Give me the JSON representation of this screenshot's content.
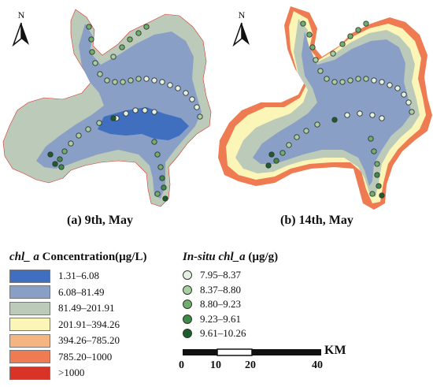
{
  "north_label": "N",
  "panels": [
    {
      "caption": "(a) 9th, May",
      "caption_date": "9th, May"
    },
    {
      "caption": "(b) 14th, May",
      "caption_date": "14th, May"
    }
  ],
  "concentration_legend": {
    "title_italic": "chl_ a",
    "title_rest": "Concentration(µg/L)",
    "classes": [
      {
        "label": "1.31–6.08",
        "color": "#3f6fbe"
      },
      {
        "label": "6.08–81.49",
        "color": "#8a9fc6"
      },
      {
        "label": "81.49–201.91",
        "color": "#bccab9"
      },
      {
        "label": "201.91–394.26",
        "color": "#fbf6b8"
      },
      {
        "label": "394.26–785.20",
        "color": "#f5b583"
      },
      {
        "label": "785.20–1000",
        "color": "#ee7b52"
      },
      {
        "label": ">1000",
        "color": "#d93229"
      }
    ]
  },
  "insitu_legend": {
    "title_italic": "In-situ chl_a",
    "title_rest": "(µg/g)",
    "classes": [
      {
        "label": "7.95–8.37",
        "color": "#e4f1e1"
      },
      {
        "label": "8.37–8.80",
        "color": "#a7cfa1"
      },
      {
        "label": "8.80–9.23",
        "color": "#6faf6d"
      },
      {
        "label": "9.23–9.61",
        "color": "#3f8a47"
      },
      {
        "label": "9.61–10.26",
        "color": "#1b5e2b"
      }
    ]
  },
  "scale_bar": {
    "unit": "KM",
    "ticks": [
      "0",
      "10",
      "20",
      "40"
    ]
  }
}
